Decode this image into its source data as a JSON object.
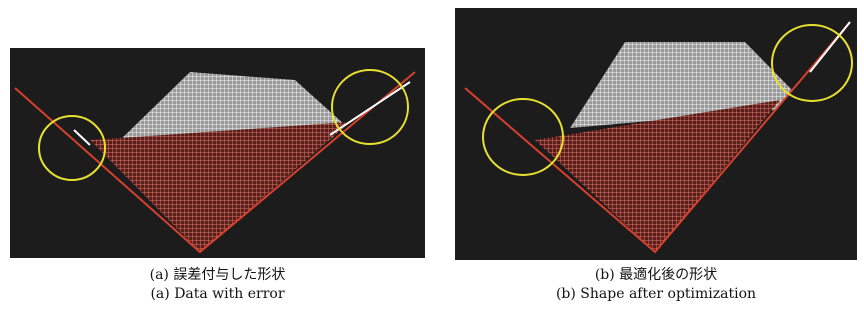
{
  "figures": [
    {
      "caption_ja": "(a) 誤差付与した形状",
      "caption_en": "(a) Data with error"
    },
    {
      "caption_ja": "(b) 最適化後の形状",
      "caption_en": "(b) Shape after optimization"
    }
  ]
}
